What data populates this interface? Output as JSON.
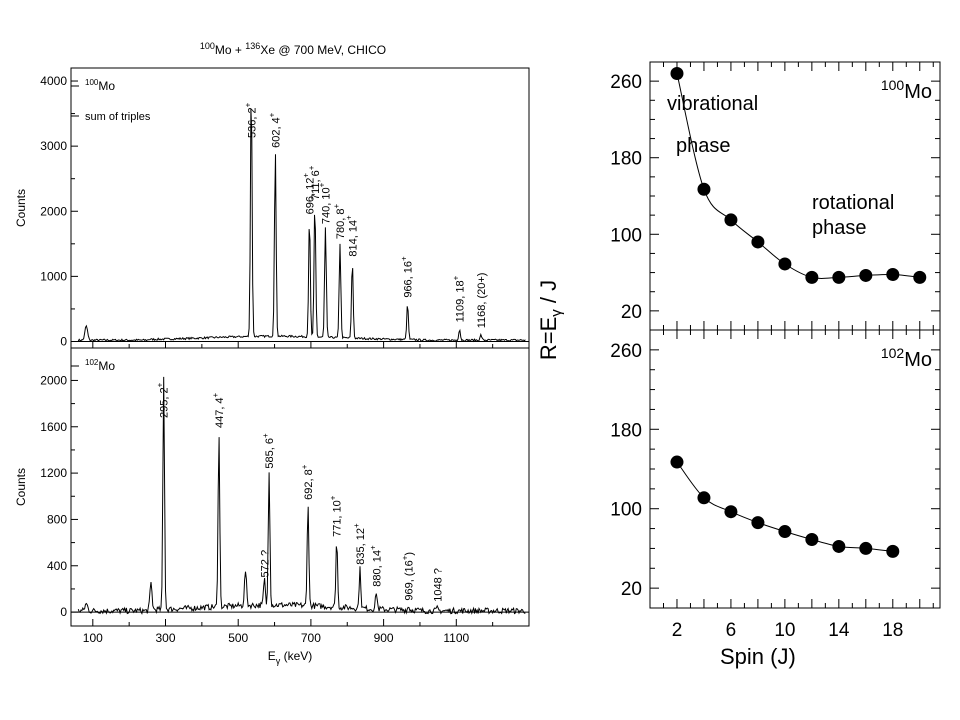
{
  "header": {
    "title_parts": [
      {
        "t": "100",
        "sup": true
      },
      {
        "t": "Mo + ",
        "sup": false
      },
      {
        "t": "136",
        "sup": true
      },
      {
        "t": "Xe @ 700 MeV, CHICO",
        "sup": false
      }
    ]
  },
  "chart_data": [
    {
      "type": "line",
      "subtype": "gamma-ray spectrum",
      "panel_label": {
        "mass": "100",
        "element": "Mo"
      },
      "annotation": "sum of triples",
      "ylabel": "Counts",
      "xlabel": "",
      "xlim": [
        40,
        1300
      ],
      "ylim": [
        -100,
        4200
      ],
      "xticks": [],
      "yticks": [
        0,
        1000,
        2000,
        3000,
        4000
      ],
      "peaks": [
        {
          "x": 536,
          "y": 3860,
          "label": "536, 2",
          "sup": "+"
        },
        {
          "x": 602,
          "y": 2850,
          "label": "602, 4",
          "sup": "+"
        },
        {
          "x": 696,
          "y": 1830,
          "label": "696, 12",
          "sup": "+"
        },
        {
          "x": 711,
          "y": 2050,
          "label": "711, 6",
          "sup": "+"
        },
        {
          "x": 740,
          "y": 1680,
          "label": "740, 10",
          "sup": "+"
        },
        {
          "x": 780,
          "y": 1450,
          "label": "780, 8",
          "sup": "+"
        },
        {
          "x": 814,
          "y": 1180,
          "label": "814, 14",
          "sup": "+"
        },
        {
          "x": 966,
          "y": 550,
          "label": "966, 16",
          "sup": "+"
        },
        {
          "x": 1109,
          "y": 170,
          "label": "1109, 18",
          "sup": "+"
        },
        {
          "x": 1168,
          "y": 80,
          "label": "1168, (20+)",
          "sup": ""
        }
      ]
    },
    {
      "type": "line",
      "subtype": "gamma-ray spectrum",
      "panel_label": {
        "mass": "102",
        "element": "Mo"
      },
      "annotation": "",
      "ylabel": "Counts",
      "xlabel": "Eγ (keV)",
      "xlabel_parts": {
        "main": "E",
        "sub": "γ",
        "unit": "(keV)"
      },
      "xlim": [
        40,
        1300
      ],
      "ylim": [
        -120,
        2280
      ],
      "xticks": [
        100,
        300,
        500,
        700,
        900,
        1100
      ],
      "yticks": [
        0,
        400,
        800,
        1200,
        1600,
        2000
      ],
      "peaks": [
        {
          "x": 295,
          "y": 2000,
          "label": "295, 2",
          "sup": "+"
        },
        {
          "x": 447,
          "y": 1520,
          "label": "447, 4",
          "sup": "+"
        },
        {
          "x": 572,
          "y": 230,
          "label": "572 ?",
          "sup": ""
        },
        {
          "x": 585,
          "y": 1170,
          "label": "585, 6",
          "sup": "+"
        },
        {
          "x": 692,
          "y": 900,
          "label": "692, 8",
          "sup": "+"
        },
        {
          "x": 771,
          "y": 580,
          "label": "771, 10",
          "sup": "+"
        },
        {
          "x": 835,
          "y": 340,
          "label": "835, 12",
          "sup": "+"
        },
        {
          "x": 880,
          "y": 150,
          "label": "880, 14",
          "sup": "+"
        },
        {
          "x": 969,
          "y": 30,
          "label": "969, (16",
          "sup": "+",
          "tail": ")"
        },
        {
          "x": 1048,
          "y": 20,
          "label": "1048 ?",
          "sup": ""
        }
      ]
    },
    {
      "type": "scatter",
      "panel_label": {
        "mass": "100",
        "element": "Mo"
      },
      "annotations": [
        "vibrational",
        "phase",
        "rotational",
        "phase"
      ],
      "xlim": [
        0,
        21.5
      ],
      "ylim": [
        0,
        280
      ],
      "yticks": [
        20,
        100,
        180,
        260
      ],
      "x": [
        2,
        4,
        6,
        8,
        10,
        12,
        14,
        16,
        18,
        20
      ],
      "y": [
        268,
        147,
        115,
        92,
        69,
        55,
        55,
        57,
        58,
        55
      ]
    },
    {
      "type": "scatter",
      "panel_label": {
        "mass": "102",
        "element": "Mo"
      },
      "xlabel": "Spin (J)",
      "ylabel_parts": {
        "a": "R=E",
        "sub": "γ",
        "b": " / J"
      },
      "xlim": [
        0,
        21.5
      ],
      "ylim": [
        0,
        280
      ],
      "xticks": [
        2,
        6,
        10,
        14,
        18
      ],
      "yticks": [
        20,
        100,
        180,
        260
      ],
      "x": [
        2,
        4,
        6,
        8,
        10,
        12,
        14,
        16,
        18
      ],
      "y": [
        147,
        111,
        97,
        86,
        77,
        69,
        62,
        60,
        57
      ]
    }
  ]
}
